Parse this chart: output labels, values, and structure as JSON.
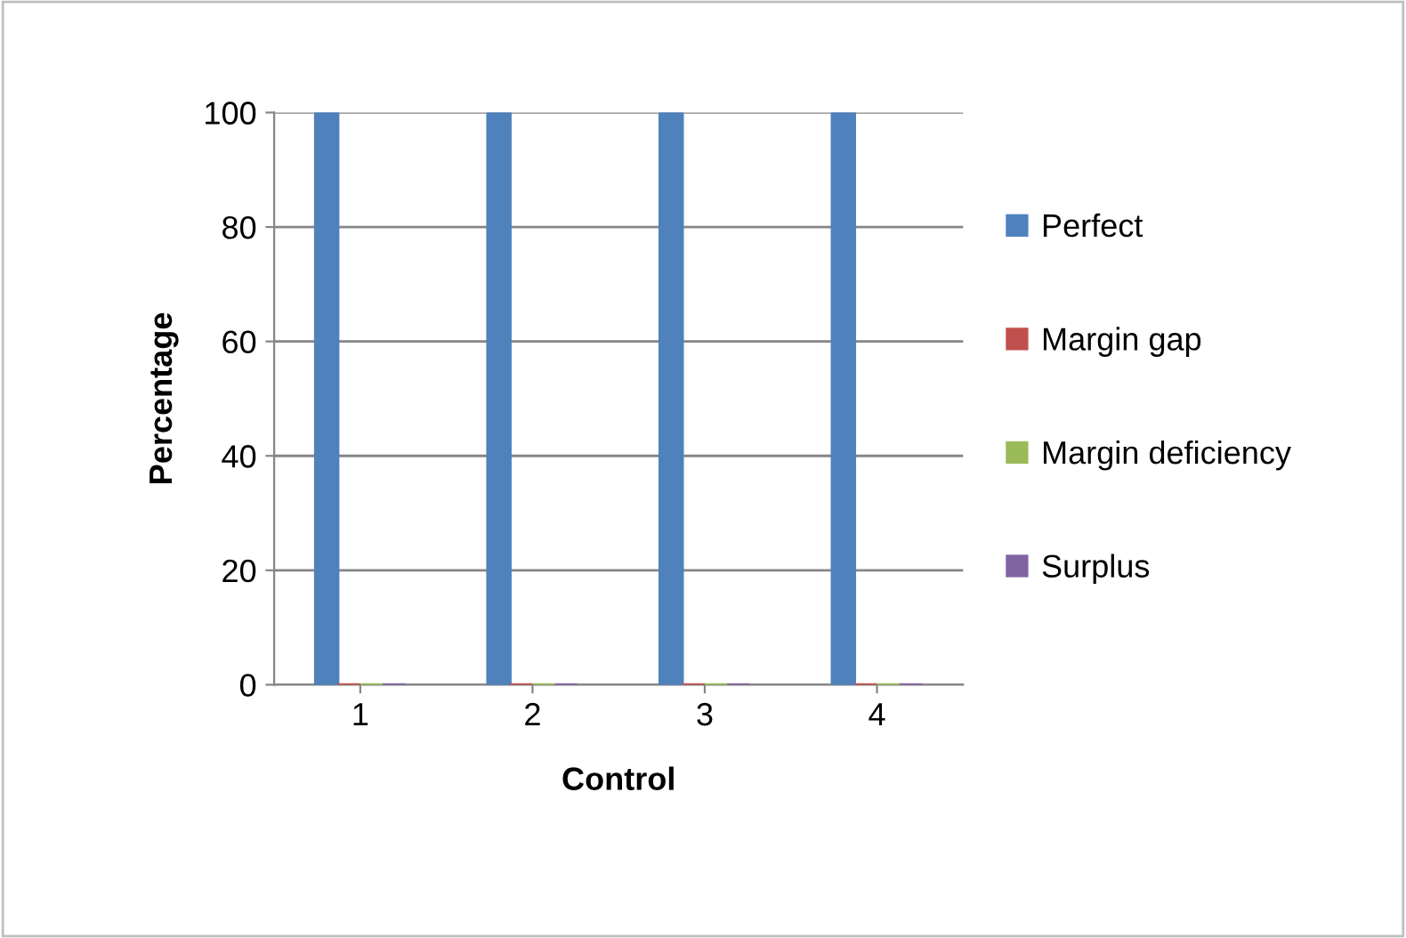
{
  "chart_data": {
    "type": "bar",
    "xlabel": "Control",
    "ylabel": "Percentage",
    "categories": [
      "1",
      "2",
      "3",
      "4"
    ],
    "series": [
      {
        "name": "Perfect",
        "color": "#4f81bd",
        "values": [
          100,
          100,
          100,
          100
        ]
      },
      {
        "name": "Margin gap",
        "color": "#c0504d",
        "values": [
          0,
          0,
          0,
          0
        ]
      },
      {
        "name": "Margin deficiency",
        "color": "#9bbb59",
        "values": [
          0,
          0,
          0,
          0
        ]
      },
      {
        "name": "Surplus",
        "color": "#8064a2",
        "values": [
          0,
          0,
          0,
          0
        ]
      }
    ],
    "ylim": [
      0,
      100
    ],
    "yticks": [
      0,
      20,
      40,
      60,
      80,
      100
    ],
    "grid": "y",
    "legend": "right"
  }
}
